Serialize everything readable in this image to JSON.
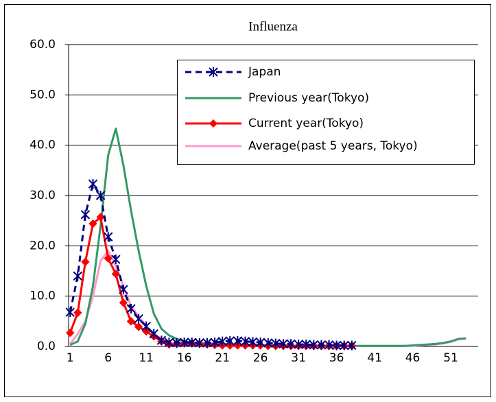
{
  "chart_data": {
    "type": "line",
    "title": "Influenza",
    "x": [
      1,
      2,
      3,
      4,
      5,
      6,
      7,
      8,
      9,
      10,
      11,
      12,
      13,
      14,
      15,
      16,
      17,
      18,
      19,
      20,
      21,
      22,
      23,
      24,
      25,
      26,
      27,
      28,
      29,
      30,
      31,
      32,
      33,
      34,
      35,
      36,
      37,
      38,
      39,
      40,
      41,
      42,
      43,
      44,
      45,
      46,
      47,
      48,
      49,
      50,
      51,
      52,
      53
    ],
    "xlim": [
      0.8,
      54.6
    ],
    "xticks": [
      1,
      6,
      11,
      16,
      21,
      26,
      31,
      36,
      41,
      46,
      51
    ],
    "ylim": [
      0,
      60
    ],
    "yticks": [
      {
        "value": 0,
        "label": "0.0"
      },
      {
        "value": 10,
        "label": "10.0"
      },
      {
        "value": 20,
        "label": "20.0"
      },
      {
        "value": 30,
        "label": "30.0"
      },
      {
        "value": 40,
        "label": "40.0"
      },
      {
        "value": 50,
        "label": "50.0"
      },
      {
        "value": 60,
        "label": "60.0"
      }
    ],
    "grid": true,
    "series": [
      {
        "name": "Japan",
        "color": "#000080",
        "dashed": true,
        "marker": "asterisk",
        "values": [
          6.8,
          14.0,
          26.2,
          32.3,
          30.0,
          21.8,
          17.3,
          11.3,
          7.5,
          5.5,
          4.0,
          2.5,
          1.2,
          0.8,
          0.7,
          0.8,
          0.8,
          0.7,
          0.7,
          0.8,
          1.0,
          1.1,
          1.1,
          1.0,
          0.9,
          0.8,
          0.7,
          0.6,
          0.5,
          0.5,
          0.4,
          0.4,
          0.3,
          0.3,
          0.3,
          0.2,
          0.2,
          0.2,
          null,
          null,
          null,
          null,
          null,
          null,
          null,
          null,
          null,
          null,
          null,
          null,
          null,
          null,
          null
        ]
      },
      {
        "name": "Previous year(Tokyo)",
        "color": "#339966",
        "dashed": false,
        "marker": "none",
        "values": [
          0.3,
          1.0,
          4.5,
          12,
          24,
          38,
          43.3,
          36,
          27,
          19,
          12,
          6.5,
          3.5,
          2.2,
          1.5,
          1.0,
          0.8,
          0.7,
          0.6,
          0.5,
          0.5,
          0.4,
          0.4,
          0.3,
          0.3,
          0.3,
          0.2,
          0.2,
          0.2,
          0.1,
          0.1,
          0.1,
          0.1,
          0.1,
          0.1,
          0.1,
          0.1,
          0.1,
          0.1,
          0.1,
          0.1,
          0.1,
          0.1,
          0.1,
          0.1,
          0.2,
          0.3,
          0.4,
          0.5,
          0.7,
          1.0,
          1.5,
          1.6
        ]
      },
      {
        "name": "Current year(Tokyo)",
        "color": "#ff0000",
        "dashed": false,
        "marker": "diamond",
        "values": [
          2.7,
          6.7,
          16.8,
          24.4,
          25.7,
          17.5,
          14.4,
          8.7,
          5.0,
          3.9,
          3.0,
          2.0,
          1.0,
          0.4,
          0.5,
          0.6,
          0.6,
          0.5,
          0.4,
          0.3,
          0.2,
          0.2,
          0.2,
          0.2,
          0.2,
          0.2,
          0.1,
          0.1,
          0.1,
          0.1,
          0.1,
          0.1,
          0.1,
          0.1,
          0.1,
          0.1,
          0.1,
          0.1,
          null,
          null,
          null,
          null,
          null,
          null,
          null,
          null,
          null,
          null,
          null,
          null,
          null,
          null,
          null
        ]
      },
      {
        "name": "Average(past 5 years, Tokyo)",
        "color": "#ff99cc",
        "dashed": false,
        "marker": "none",
        "values": [
          0.5,
          2.5,
          5.0,
          10,
          17,
          19,
          16,
          12,
          8,
          6,
          4,
          2.5,
          1.5,
          0.8,
          0.6,
          0.5,
          0.5,
          0.4,
          0.4,
          0.3,
          0.3,
          0.3,
          0.2,
          0.2,
          0.2,
          0.2,
          0.2,
          0.1,
          0.1,
          0.1,
          0.1,
          0.1,
          0.1,
          0.1,
          0.1,
          0.1,
          0.1,
          0.1,
          0.1,
          0.1,
          0.1,
          0.1,
          0.1,
          0.1,
          0.1,
          0.1,
          0.2,
          0.3,
          0.4,
          0.6,
          0.9,
          1.4,
          1.6
        ]
      }
    ]
  }
}
